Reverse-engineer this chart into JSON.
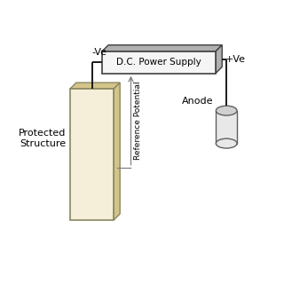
{
  "bg_color": "#ffffff",
  "struct_face": "#f5eed8",
  "struct_side": "#d4c48a",
  "struct_edge": "#888860",
  "cyl_face": "#e8e8e8",
  "cyl_top": "#d0d0d0",
  "cyl_edge": "#606060",
  "ps_face": "#f5f5f5",
  "ps_side": "#b0b0b0",
  "ps_edge": "#404040",
  "line_color": "#1a1a1a",
  "ref_color": "#808080",
  "text_color": "#000000",
  "title_power": "D.C. Power Supply",
  "label_neg": "-Ve",
  "label_pos": "+Ve",
  "label_structure": "Protected\nStructure",
  "label_anode": "Anode",
  "label_ref": "Reference Potential",
  "xlim": [
    0,
    10
  ],
  "ylim": [
    0,
    10
  ]
}
